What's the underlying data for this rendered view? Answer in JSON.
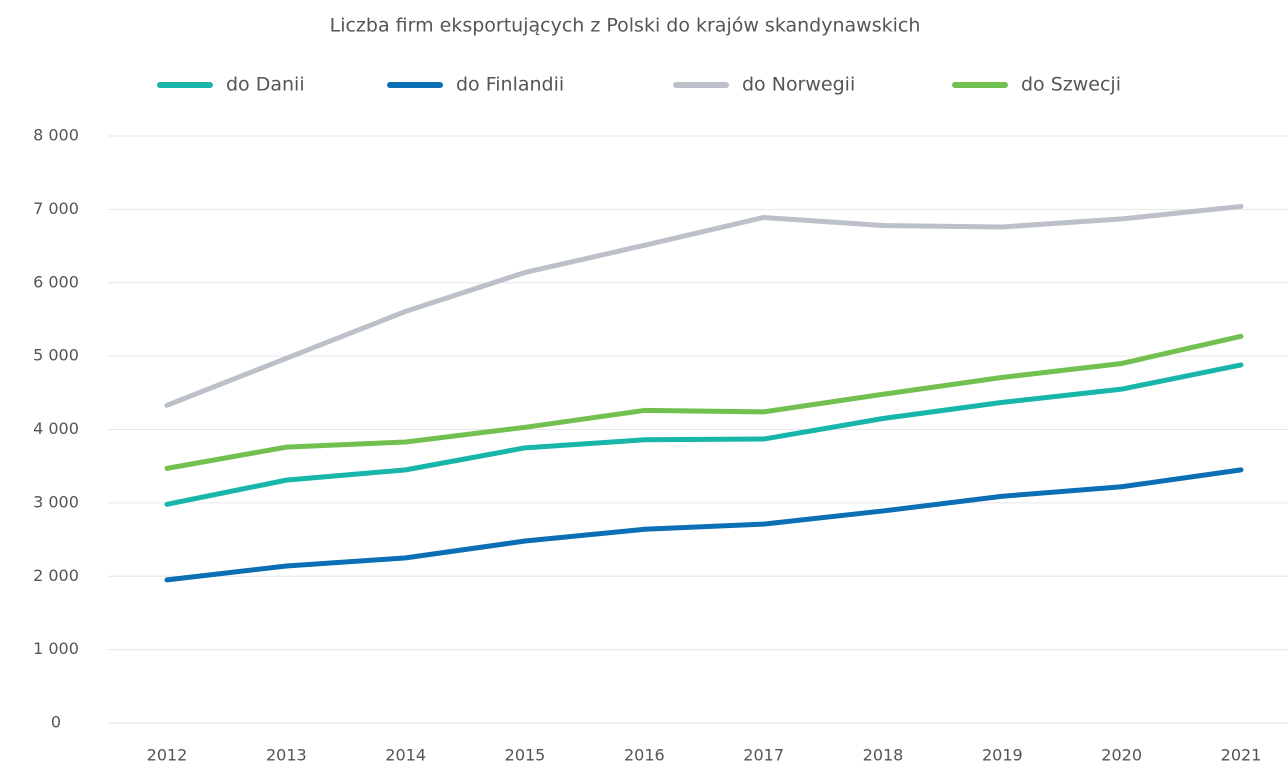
{
  "chart_data": {
    "type": "line",
    "title": "Liczba firm eksportujących z Polski do krajów skandynawskich",
    "categories": [
      "2012",
      "2013",
      "2014",
      "2015",
      "2016",
      "2017",
      "2018",
      "2019",
      "2020",
      "2021"
    ],
    "series": [
      {
        "name": "do Danii",
        "color": "#17b5aa",
        "values": [
          2980,
          3310,
          3450,
          3750,
          3860,
          3870,
          4150,
          4370,
          4550,
          4880
        ]
      },
      {
        "name": "do Finlandii",
        "color": "#0a6fb5",
        "values": [
          1950,
          2140,
          2250,
          2480,
          2640,
          2710,
          2890,
          3090,
          3220,
          3450
        ]
      },
      {
        "name": "do Norwegii",
        "color": "#bcc0c9",
        "values": [
          4330,
          4970,
          5610,
          6140,
          6510,
          6890,
          6780,
          6760,
          6870,
          7040
        ]
      },
      {
        "name": "do Szwecji",
        "color": "#72c050",
        "values": [
          3470,
          3760,
          3830,
          4030,
          4260,
          4240,
          4480,
          4710,
          4900,
          5270
        ]
      }
    ],
    "ylim": [
      0,
      8000
    ],
    "yticks": [
      0,
      {
        "value": 1000,
        "label": "1 000"
      },
      {
        "value": 2000,
        "label": "2 000"
      },
      {
        "value": 3000,
        "label": "3 000"
      },
      {
        "value": 4000,
        "label": "4 000"
      },
      {
        "value": 5000,
        "label": "5 000"
      },
      {
        "value": 6000,
        "label": "6 000"
      },
      {
        "value": 7000,
        "label": "7 000"
      },
      {
        "value": 8000,
        "label": "8 000"
      }
    ],
    "grid": true,
    "legend": "top"
  }
}
